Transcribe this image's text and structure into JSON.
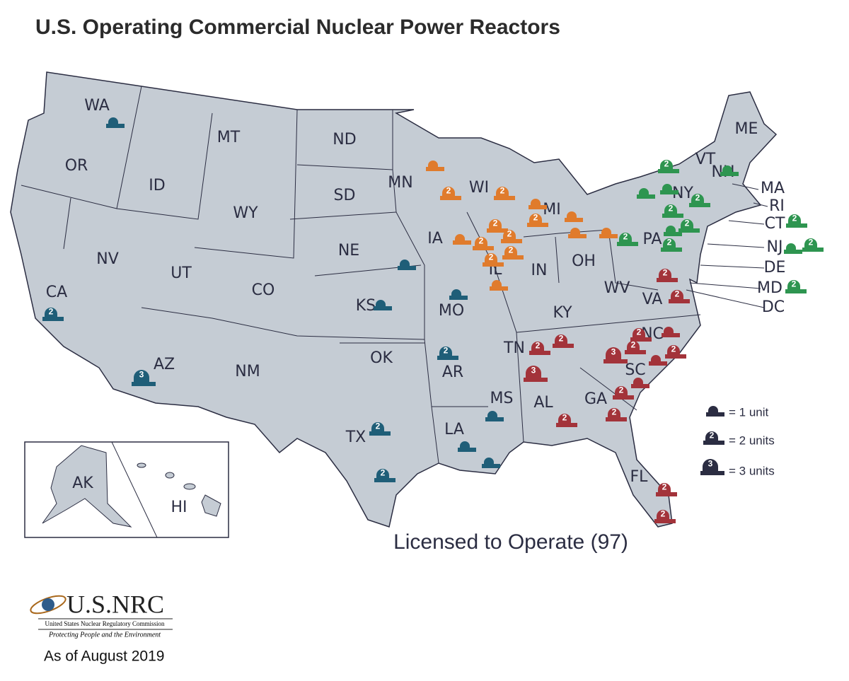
{
  "title": "U.S. Operating Commercial Nuclear Power Reactors",
  "states": [
    "WA",
    "OR",
    "CA",
    "NV",
    "ID",
    "MT",
    "WY",
    "UT",
    "AZ",
    "CO",
    "NM",
    "ND",
    "SD",
    "NE",
    "KS",
    "OK",
    "TX",
    "MN",
    "IA",
    "MO",
    "AR",
    "LA",
    "WI",
    "IL",
    "MS",
    "MI",
    "IN",
    "OH",
    "KY",
    "TN",
    "AL",
    "GA",
    "FL",
    "SC",
    "NC",
    "VA",
    "WV",
    "PA",
    "NY",
    "VT",
    "NH",
    "ME",
    "MA",
    "RI",
    "CT",
    "NJ",
    "DE",
    "MD",
    "DC",
    "AK",
    "HI"
  ],
  "reactors": [
    {
      "units": 1,
      "color": "#1f5e78"
    },
    {
      "units": 2,
      "color": "#1f5e78"
    },
    {
      "units": 3,
      "color": "#1f5e78"
    },
    {
      "units": 1,
      "color": "#1f5e78"
    },
    {
      "units": 1,
      "color": "#1f5e78"
    },
    {
      "units": 1,
      "color": "#1f5e78"
    },
    {
      "units": 2,
      "color": "#1f5e78"
    },
    {
      "units": 2,
      "color": "#1f5e78"
    },
    {
      "units": 2,
      "color": "#1f5e78"
    },
    {
      "units": 1,
      "color": "#1f5e78"
    },
    {
      "units": 1,
      "color": "#1f5e78"
    },
    {
      "units": 1,
      "color": "#1f5e78"
    },
    {
      "units": 1,
      "color": "#e07b2c"
    },
    {
      "units": 2,
      "color": "#e07b2c"
    },
    {
      "units": 2,
      "color": "#e07b2c"
    },
    {
      "units": 1,
      "color": "#e07b2c"
    },
    {
      "units": 2,
      "color": "#e07b2c"
    },
    {
      "units": 2,
      "color": "#e07b2c"
    },
    {
      "units": 2,
      "color": "#e07b2c"
    },
    {
      "units": 2,
      "color": "#e07b2c"
    },
    {
      "units": 2,
      "color": "#e07b2c"
    },
    {
      "units": 1,
      "color": "#e07b2c"
    },
    {
      "units": 1,
      "color": "#e07b2c"
    },
    {
      "units": 2,
      "color": "#e07b2c"
    },
    {
      "units": 1,
      "color": "#e07b2c"
    },
    {
      "units": 1,
      "color": "#e07b2c"
    },
    {
      "units": 1,
      "color": "#e07b2c"
    },
    {
      "units": 2,
      "color": "#2e9550"
    },
    {
      "units": 1,
      "color": "#2e9550"
    },
    {
      "units": 1,
      "color": "#2e9550"
    },
    {
      "units": 2,
      "color": "#2e9550"
    },
    {
      "units": 1,
      "color": "#2e9550"
    },
    {
      "units": 2,
      "color": "#2e9550"
    },
    {
      "units": 1,
      "color": "#2e9550"
    },
    {
      "units": 2,
      "color": "#2e9550"
    },
    {
      "units": 2,
      "color": "#2e9550"
    },
    {
      "units": 2,
      "color": "#2e9550"
    },
    {
      "units": 2,
      "color": "#2e9550"
    },
    {
      "units": 1,
      "color": "#2e9550"
    },
    {
      "units": 2,
      "color": "#2e9550"
    },
    {
      "units": 2,
      "color": "#2e9550"
    },
    {
      "units": 2,
      "color": "#a3333a"
    },
    {
      "units": 2,
      "color": "#a3333a"
    },
    {
      "units": 2,
      "color": "#a3333a"
    },
    {
      "units": 2,
      "color": "#a3333a"
    },
    {
      "units": 3,
      "color": "#a3333a"
    },
    {
      "units": 2,
      "color": "#a3333a"
    },
    {
      "units": 2,
      "color": "#a3333a"
    },
    {
      "units": 1,
      "color": "#a3333a"
    },
    {
      "units": 2,
      "color": "#a3333a"
    },
    {
      "units": 2,
      "color": "#a3333a"
    },
    {
      "units": 3,
      "color": "#a3333a"
    },
    {
      "units": 1,
      "color": "#a3333a"
    },
    {
      "units": 1,
      "color": "#a3333a"
    },
    {
      "units": 2,
      "color": "#a3333a"
    },
    {
      "units": 2,
      "color": "#a3333a"
    },
    {
      "units": 2,
      "color": "#a3333a"
    },
    {
      "units": 2,
      "color": "#a3333a"
    }
  ],
  "legend": [
    {
      "units": 1,
      "label": "= 1 unit"
    },
    {
      "units": 2,
      "label": "= 2 units"
    },
    {
      "units": 3,
      "label": "= 3 units"
    }
  ],
  "legend_color": "#2b2d42",
  "map_caption": "Licensed to Operate (97)",
  "logo": {
    "name": "U.S.NRC",
    "agency": "United States Nuclear Regulatory Commission",
    "motto": "Protecting People and the Environment"
  },
  "date": "As of August 2019"
}
